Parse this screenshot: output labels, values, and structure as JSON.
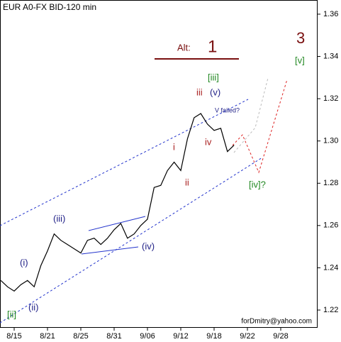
{
  "chart_data": {
    "type": "line",
    "title": "EUR A0-FX BID-120 min",
    "categories": [
      null,
      null,
      "8/15",
      null,
      null,
      null,
      null,
      "8/21",
      null,
      null,
      null,
      null,
      "8/25",
      null,
      null,
      null,
      null,
      "8/31",
      null,
      null,
      null,
      null,
      "9/06",
      null,
      null,
      null,
      null,
      "9/12",
      null,
      null,
      null,
      null,
      "9/18",
      null,
      null,
      null,
      null,
      "9/22",
      null,
      null,
      null,
      null,
      "9/28",
      null,
      null,
      null,
      null,
      null
    ],
    "series": [
      {
        "name": "EUR A0-FX BID",
        "color": "#000000",
        "values": [
          1.234,
          1.231,
          1.229,
          1.232,
          1.234,
          1.231,
          1.241,
          1.248,
          1.256,
          1.253,
          1.251,
          1.249,
          1.247,
          1.253,
          1.254,
          1.251,
          1.254,
          1.258,
          1.261,
          1.254,
          1.256,
          1.26,
          1.263,
          1.278,
          1.279,
          1.286,
          1.29,
          1.286,
          1.301,
          1.311,
          1.313,
          1.308,
          1.305,
          1.306,
          1.295,
          1.298,
          null,
          null,
          null,
          null,
          null,
          null,
          null,
          null,
          null,
          null,
          null,
          null
        ]
      }
    ],
    "ylim": [
      1.2116,
      1.3667
    ],
    "yticks": [
      1.22,
      1.24,
      1.26,
      1.28,
      {
        "value": 1.3,
        "label": "1.30"
      },
      1.32,
      1.34,
      1.36
    ],
    "grid": false,
    "annotations": [
      "Alt:",
      "1",
      "3",
      "[v]",
      "[iii]",
      "iii",
      "(v)",
      "V failed?",
      "i",
      "ii",
      "iv",
      "[iv]?",
      "(iii)",
      "(iv)",
      "(i)",
      "(ii)",
      "[ii]",
      "forDmitry@yahoo.com"
    ]
  }
}
